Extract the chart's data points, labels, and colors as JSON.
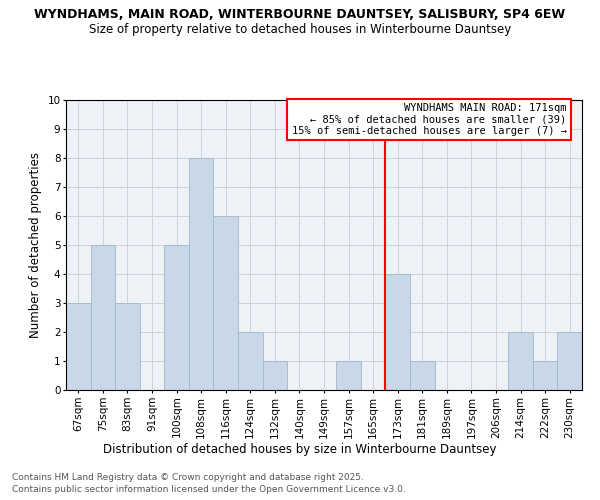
{
  "title_line1": "WYNDHAMS, MAIN ROAD, WINTERBOURNE DAUNTSEY, SALISBURY, SP4 6EW",
  "title_line2": "Size of property relative to detached houses in Winterbourne Dauntsey",
  "xlabel": "Distribution of detached houses by size in Winterbourne Dauntsey",
  "ylabel": "Number of detached properties",
  "categories": [
    "67sqm",
    "75sqm",
    "83sqm",
    "91sqm",
    "100sqm",
    "108sqm",
    "116sqm",
    "124sqm",
    "132sqm",
    "140sqm",
    "149sqm",
    "157sqm",
    "165sqm",
    "173sqm",
    "181sqm",
    "189sqm",
    "197sqm",
    "206sqm",
    "214sqm",
    "222sqm",
    "230sqm"
  ],
  "values": [
    3,
    5,
    3,
    0,
    5,
    8,
    6,
    2,
    1,
    0,
    0,
    1,
    0,
    4,
    1,
    0,
    0,
    0,
    2,
    1,
    2
  ],
  "bar_color": "#c8d8e8",
  "bar_edge_color": "#a0b8cc",
  "vline_color": "red",
  "vline_index": 13,
  "ylim": [
    0,
    10
  ],
  "yticks": [
    0,
    1,
    2,
    3,
    4,
    5,
    6,
    7,
    8,
    9,
    10
  ],
  "annotation_title": "WYNDHAMS MAIN ROAD: 171sqm",
  "annotation_line2": "← 85% of detached houses are smaller (39)",
  "annotation_line3": "15% of semi-detached houses are larger (7) →",
  "footer_line1": "Contains HM Land Registry data © Crown copyright and database right 2025.",
  "footer_line2": "Contains public sector information licensed under the Open Government Licence v3.0.",
  "background_color": "#eef2f7",
  "grid_color": "#c8d4e0",
  "title_fontsize": 9,
  "subtitle_fontsize": 8.5,
  "axis_label_fontsize": 8.5,
  "tick_fontsize": 7.5,
  "annotation_fontsize": 7.5,
  "footer_fontsize": 6.5
}
